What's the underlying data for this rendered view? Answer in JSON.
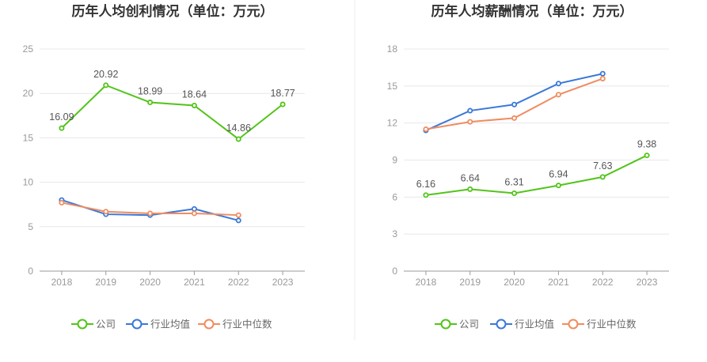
{
  "chart_data": [
    {
      "type": "line",
      "title": "历年人均创利情况（单位：万元）",
      "categories": [
        "2018",
        "2019",
        "2020",
        "2021",
        "2022",
        "2023"
      ],
      "ylim": [
        0,
        25
      ],
      "yticks": [
        0,
        5,
        10,
        15,
        20,
        25
      ],
      "grid": true,
      "legend_position": "bottom",
      "series": [
        {
          "name": "公司",
          "color": "#52c41a",
          "values": [
            16.09,
            20.92,
            18.99,
            18.64,
            14.86,
            18.77
          ],
          "labels": true
        },
        {
          "name": "行业均值",
          "color": "#3a78d8",
          "values": [
            8.0,
            6.4,
            6.3,
            7.0,
            5.7,
            null
          ],
          "labels": false
        },
        {
          "name": "行业中位数",
          "color": "#f08c60",
          "values": [
            7.7,
            6.7,
            6.5,
            6.5,
            6.3,
            null
          ],
          "labels": false
        }
      ]
    },
    {
      "type": "line",
      "title": "历年人均薪酬情况（单位：万元）",
      "categories": [
        "2018",
        "2019",
        "2020",
        "2021",
        "2022",
        "2023"
      ],
      "ylim": [
        0,
        18
      ],
      "yticks": [
        0,
        3,
        6,
        9,
        12,
        15,
        18
      ],
      "grid": true,
      "legend_position": "bottom",
      "series": [
        {
          "name": "公司",
          "color": "#52c41a",
          "values": [
            6.16,
            6.64,
            6.31,
            6.94,
            7.63,
            9.38
          ],
          "labels": true
        },
        {
          "name": "行业均值",
          "color": "#3a78d8",
          "values": [
            11.4,
            13.0,
            13.5,
            15.2,
            16.0,
            null
          ],
          "labels": false
        },
        {
          "name": "行业中位数",
          "color": "#f08c60",
          "values": [
            11.5,
            12.1,
            12.4,
            14.3,
            15.6,
            null
          ],
          "labels": false
        }
      ]
    }
  ]
}
